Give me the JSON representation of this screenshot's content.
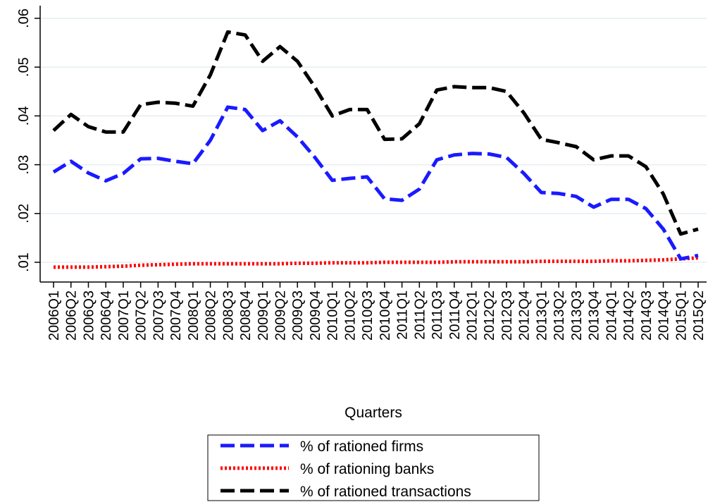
{
  "chart_data": {
    "type": "line",
    "xlabel": "Quarters",
    "ylabel": "",
    "ylim": [
      0.007,
      0.062
    ],
    "yticks": [
      {
        "value": 0.01,
        "label": ".01"
      },
      {
        "value": 0.02,
        "label": ".02"
      },
      {
        "value": 0.03,
        "label": ".03"
      },
      {
        "value": 0.04,
        "label": ".04"
      },
      {
        "value": 0.05,
        "label": ".05"
      },
      {
        "value": 0.06,
        "label": ".06"
      }
    ],
    "grid": "horizontal",
    "legend_position": "bottom",
    "categories": [
      "2006Q1",
      "2006Q2",
      "2006Q3",
      "2006Q4",
      "2007Q1",
      "2007Q2",
      "2007Q3",
      "2007Q4",
      "2008Q1",
      "2008Q2",
      "2008Q3",
      "2008Q4",
      "2009Q1",
      "2009Q2",
      "2009Q3",
      "2009Q4",
      "2010Q1",
      "2010Q2",
      "2010Q3",
      "2010Q4",
      "2011Q1",
      "2011Q2",
      "2011Q3",
      "2011Q4",
      "2012Q1",
      "2012Q2",
      "2012Q3",
      "2012Q4",
      "2013Q1",
      "2013Q2",
      "2013Q3",
      "2013Q4",
      "2014Q1",
      "2014Q2",
      "2014Q3",
      "2014Q4",
      "2015Q1",
      "2015Q2"
    ],
    "series": [
      {
        "name": "% of rationed firms",
        "color": "#1a1aff",
        "dash": "dashed",
        "values": [
          0.0285,
          0.0307,
          0.0283,
          0.0267,
          0.0282,
          0.0312,
          0.0313,
          0.0307,
          0.0302,
          0.035,
          0.0418,
          0.0413,
          0.037,
          0.039,
          0.0357,
          0.0315,
          0.0268,
          0.0272,
          0.0275,
          0.023,
          0.0227,
          0.025,
          0.031,
          0.032,
          0.0323,
          0.0322,
          0.0315,
          0.0282,
          0.0243,
          0.0241,
          0.0235,
          0.0213,
          0.0229,
          0.0229,
          0.021,
          0.0168,
          0.0107,
          0.0114
        ]
      },
      {
        "name": "% of rationing banks",
        "color": "#ff0000",
        "dash": "dotted",
        "values": [
          0.009,
          0.009,
          0.009,
          0.0091,
          0.0092,
          0.0094,
          0.0095,
          0.0096,
          0.0097,
          0.0097,
          0.0097,
          0.0097,
          0.0097,
          0.0097,
          0.0098,
          0.0098,
          0.0099,
          0.0099,
          0.0099,
          0.01,
          0.01,
          0.01,
          0.01,
          0.0101,
          0.0101,
          0.0101,
          0.0101,
          0.0101,
          0.0102,
          0.0102,
          0.0102,
          0.0102,
          0.0103,
          0.0103,
          0.0104,
          0.0105,
          0.0107,
          0.0109
        ]
      },
      {
        "name": "% of rationed transactions",
        "color": "#000000",
        "dash": "dashed",
        "values": [
          0.037,
          0.0403,
          0.0378,
          0.0367,
          0.0367,
          0.0423,
          0.0428,
          0.0426,
          0.042,
          0.0484,
          0.0572,
          0.0566,
          0.0512,
          0.0542,
          0.0512,
          0.0459,
          0.04,
          0.0413,
          0.0413,
          0.0352,
          0.0353,
          0.0384,
          0.0453,
          0.046,
          0.0458,
          0.0458,
          0.045,
          0.0406,
          0.0352,
          0.0345,
          0.0337,
          0.031,
          0.0318,
          0.0318,
          0.0296,
          0.024,
          0.0158,
          0.0168
        ]
      }
    ]
  }
}
